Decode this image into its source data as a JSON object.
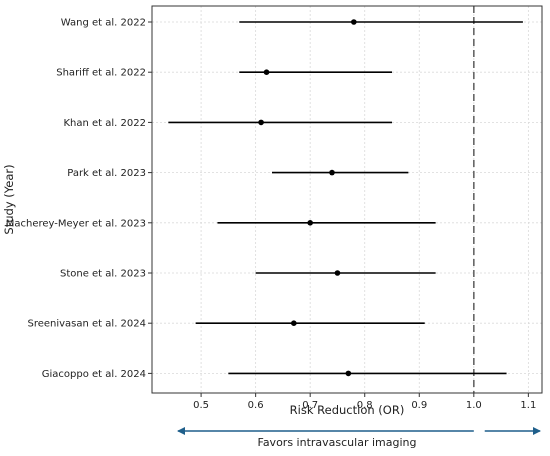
{
  "chart_data": {
    "type": "forest",
    "xlabel": "Risk Reduction (OR)",
    "ylabel": "Study (Year)",
    "xlim": [
      0.41,
      1.125
    ],
    "xticks": [
      "0.5",
      "0.6",
      "0.7",
      "0.8",
      "0.9",
      "1.0",
      "1.1"
    ],
    "grid": true,
    "reference_line": {
      "x": 1.0,
      "style": "dashed"
    },
    "studies": [
      {
        "label": "Wang et al. 2022",
        "or": 0.78,
        "ci_low": 0.57,
        "ci_high": 1.09
      },
      {
        "label": "Shariff et al. 2022",
        "or": 0.62,
        "ci_low": 0.57,
        "ci_high": 0.85
      },
      {
        "label": "Khan et al. 2022",
        "or": 0.61,
        "ci_low": 0.44,
        "ci_high": 0.85
      },
      {
        "label": "Park et al. 2023",
        "or": 0.74,
        "ci_low": 0.63,
        "ci_high": 0.88
      },
      {
        "label": "Macherey-Meyer et al. 2023",
        "or": 0.7,
        "ci_low": 0.53,
        "ci_high": 0.93
      },
      {
        "label": "Stone et al. 2023",
        "or": 0.75,
        "ci_low": 0.6,
        "ci_high": 0.93
      },
      {
        "label": "Sreenivasan et al. 2024",
        "or": 0.67,
        "ci_low": 0.49,
        "ci_high": 0.91
      },
      {
        "label": "Giacoppo et al. 2024",
        "or": 0.77,
        "ci_low": 0.55,
        "ci_high": 1.06
      }
    ],
    "annotation": {
      "text": "Favors intravascular imaging",
      "arrow_color": "#1f5f8b",
      "left_arrow_span": [
        0.41,
        1.0
      ],
      "right_arrow_span": [
        1.02,
        1.125
      ]
    },
    "colors": {
      "point": "#000000",
      "ci_line": "#000000",
      "grid": "#d9d9d9",
      "reference_line": "#666666",
      "axis": "#333333"
    }
  }
}
